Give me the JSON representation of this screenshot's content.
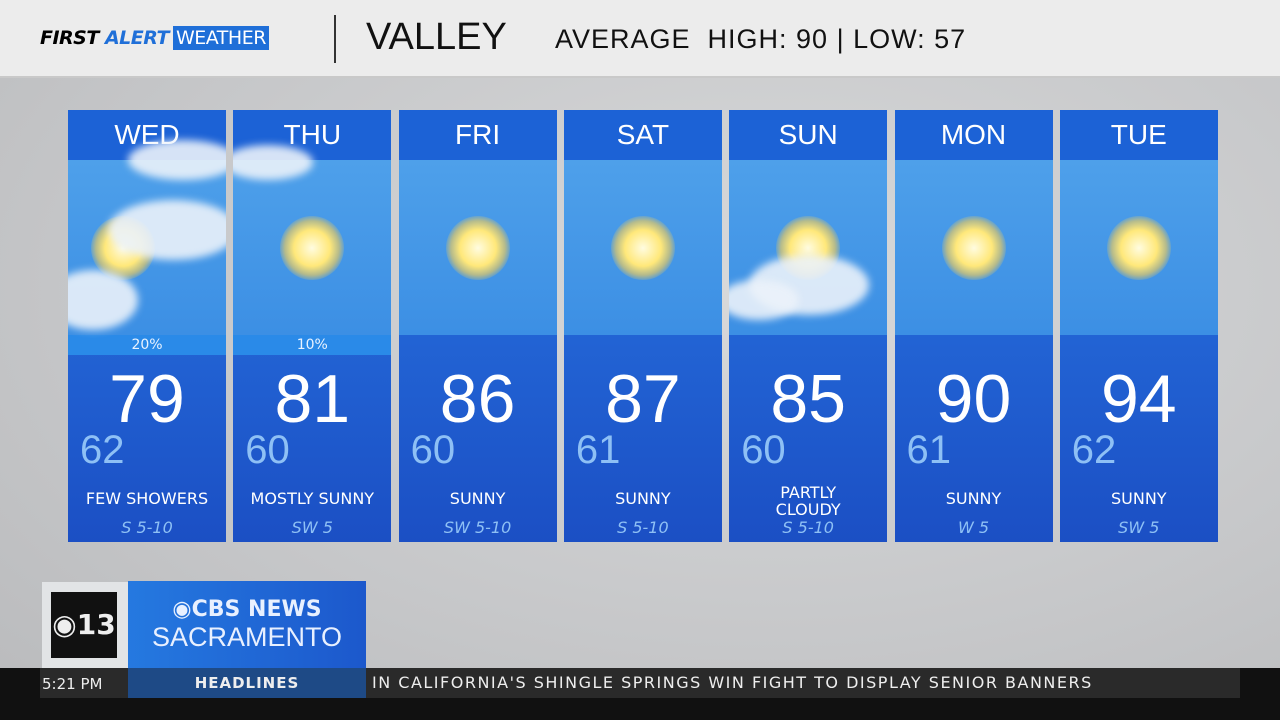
{
  "header": {
    "brand_first": "FIRST",
    "brand_alert": "ALERT",
    "brand_weather": "WEATHER",
    "location": "VALLEY",
    "average": "AVERAGE  HIGH: 90 | LOW: 57"
  },
  "days": [
    {
      "day": "WED",
      "icon": "sun-clouds",
      "precip": "20%",
      "high": "79",
      "low": "62",
      "condition": "FEW SHOWERS",
      "wind": "S 5-10"
    },
    {
      "day": "THU",
      "icon": "sun",
      "precip": "10%",
      "high": "81",
      "low": "60",
      "condition": "MOSTLY SUNNY",
      "wind": "SW 5"
    },
    {
      "day": "FRI",
      "icon": "sun",
      "precip": "",
      "high": "86",
      "low": "60",
      "condition": "SUNNY",
      "wind": "SW 5-10"
    },
    {
      "day": "SAT",
      "icon": "sun",
      "precip": "",
      "high": "87",
      "low": "61",
      "condition": "SUNNY",
      "wind": "S 5-10"
    },
    {
      "day": "SUN",
      "icon": "sun-cloud",
      "precip": "",
      "high": "85",
      "low": "60",
      "condition": "PARTLY CLOUDY",
      "wind": "S 5-10"
    },
    {
      "day": "MON",
      "icon": "sun",
      "precip": "",
      "high": "90",
      "low": "61",
      "condition": "SUNNY",
      "wind": "W 5"
    },
    {
      "day": "TUE",
      "icon": "sun",
      "precip": "",
      "high": "94",
      "low": "62",
      "condition": "SUNNY",
      "wind": "SW 5"
    }
  ],
  "station": {
    "channel": "13",
    "network": "CBS NEWS",
    "city": "SACRAMENTO"
  },
  "ticker": {
    "time": "5:21 PM",
    "label": "HEADLINES",
    "text": "IN CALIFORNIA'S SHINGLE SPRINGS WIN FIGHT TO DISPLAY SENIOR BANNERS"
  },
  "colors": {
    "accent": "#1f6fd8",
    "card": "#1b4fc4"
  }
}
